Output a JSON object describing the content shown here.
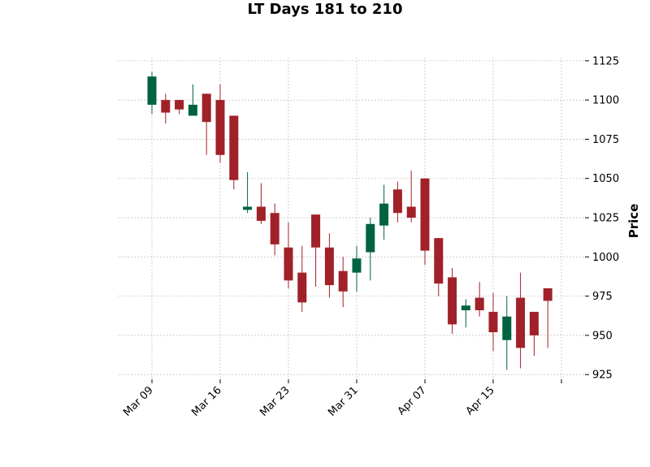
{
  "chart_data": {
    "type": "candlestick",
    "title": "LT Days 181 to 210",
    "ylabel": "Price",
    "xlabel": "",
    "ylim": [
      922,
      1127
    ],
    "y_ticks": [
      925,
      950,
      975,
      1000,
      1025,
      1050,
      1075,
      1100,
      1125
    ],
    "y_tick_labels": [
      "925",
      "950",
      "975",
      "1000",
      "1025",
      "1050",
      "1075",
      "1100",
      "1125"
    ],
    "x_tick_labels": [
      {
        "label": "Mar 09",
        "index": 0
      },
      {
        "label": "Mar 16",
        "index": 5
      },
      {
        "label": "Mar 23",
        "index": 10
      },
      {
        "label": "Mar 31",
        "index": 15
      },
      {
        "label": "Apr 07",
        "index": 20
      },
      {
        "label": "Apr 15",
        "index": 25
      },
      {
        "label": "",
        "index": 30
      }
    ],
    "grid": true,
    "colors": {
      "up": "#006340",
      "down": "#a02128"
    },
    "candles": [
      {
        "open": 1097,
        "high": 1118,
        "low": 1091,
        "close": 1115
      },
      {
        "open": 1100,
        "high": 1104,
        "low": 1085,
        "close": 1092
      },
      {
        "open": 1100,
        "high": 1100,
        "low": 1091,
        "close": 1094
      },
      {
        "open": 1090,
        "high": 1110,
        "low": 1090,
        "close": 1097
      },
      {
        "open": 1104,
        "high": 1104,
        "low": 1065,
        "close": 1086
      },
      {
        "open": 1100,
        "high": 1110,
        "low": 1060,
        "close": 1065
      },
      {
        "open": 1090,
        "high": 1090,
        "low": 1043,
        "close": 1049
      },
      {
        "open": 1030,
        "high": 1054,
        "low": 1028,
        "close": 1032
      },
      {
        "open": 1032,
        "high": 1047,
        "low": 1021,
        "close": 1023
      },
      {
        "open": 1028,
        "high": 1034,
        "low": 1001,
        "close": 1008
      },
      {
        "open": 1006,
        "high": 1022,
        "low": 980,
        "close": 985
      },
      {
        "open": 990,
        "high": 1007,
        "low": 965,
        "close": 971
      },
      {
        "open": 1027,
        "high": 1027,
        "low": 981,
        "close": 1006
      },
      {
        "open": 1006,
        "high": 1015,
        "low": 974,
        "close": 982
      },
      {
        "open": 991,
        "high": 1000,
        "low": 968,
        "close": 978
      },
      {
        "open": 990,
        "high": 1007,
        "low": 978,
        "close": 999
      },
      {
        "open": 1003,
        "high": 1025,
        "low": 985,
        "close": 1021
      },
      {
        "open": 1020,
        "high": 1046,
        "low": 1011,
        "close": 1034
      },
      {
        "open": 1043,
        "high": 1048,
        "low": 1022,
        "close": 1028
      },
      {
        "open": 1032,
        "high": 1055,
        "low": 1022,
        "close": 1025
      },
      {
        "open": 1050,
        "high": 1050,
        "low": 995,
        "close": 1004
      },
      {
        "open": 1012,
        "high": 1012,
        "low": 975,
        "close": 983
      },
      {
        "open": 987,
        "high": 993,
        "low": 951,
        "close": 957
      },
      {
        "open": 966,
        "high": 973,
        "low": 955,
        "close": 969
      },
      {
        "open": 974,
        "high": 984,
        "low": 962,
        "close": 966
      },
      {
        "open": 965,
        "high": 977,
        "low": 940,
        "close": 952
      },
      {
        "open": 947,
        "high": 975,
        "low": 928,
        "close": 962
      },
      {
        "open": 974,
        "high": 990,
        "low": 929,
        "close": 942
      },
      {
        "open": 965,
        "high": 965,
        "low": 937,
        "close": 950
      },
      {
        "open": 980,
        "high": 980,
        "low": 942,
        "close": 972
      }
    ]
  }
}
